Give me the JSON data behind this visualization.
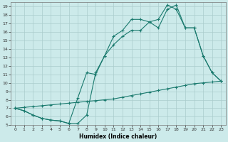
{
  "title": "",
  "xlabel": "Humidex (Indice chaleur)",
  "bg_color": "#cceaea",
  "line_color": "#1a7a6e",
  "grid_color": "#aacccc",
  "xlim": [
    -0.5,
    23.5
  ],
  "ylim": [
    5,
    19.5
  ],
  "xticks": [
    0,
    1,
    2,
    3,
    4,
    5,
    6,
    7,
    8,
    9,
    10,
    11,
    12,
    13,
    14,
    15,
    16,
    17,
    18,
    19,
    20,
    21,
    22,
    23
  ],
  "yticks": [
    5,
    6,
    7,
    8,
    9,
    10,
    11,
    12,
    13,
    14,
    15,
    16,
    17,
    18,
    19
  ],
  "line1_x": [
    0,
    1,
    2,
    3,
    4,
    5,
    6,
    7,
    8,
    9,
    10,
    11,
    12,
    13,
    14,
    15,
    16,
    17,
    18,
    19,
    20,
    21,
    22,
    23
  ],
  "line1_y": [
    7.0,
    6.7,
    6.2,
    5.8,
    5.6,
    5.5,
    5.2,
    5.2,
    6.2,
    11.2,
    13.2,
    14.5,
    15.5,
    16.2,
    16.2,
    17.2,
    17.5,
    19.2,
    18.7,
    16.5,
    16.5,
    13.2,
    11.2,
    10.2
  ],
  "line2_x": [
    0,
    1,
    2,
    3,
    4,
    5,
    6,
    7,
    8,
    9,
    10,
    11,
    12,
    13,
    14,
    15,
    16,
    17,
    18,
    19,
    20,
    21,
    22,
    23
  ],
  "line2_y": [
    7.0,
    6.7,
    6.2,
    5.8,
    5.6,
    5.5,
    5.2,
    8.2,
    11.2,
    11.0,
    13.2,
    15.5,
    16.2,
    17.5,
    17.5,
    17.2,
    16.5,
    18.7,
    19.2,
    16.5,
    16.5,
    13.2,
    11.2,
    10.2
  ],
  "line3_x": [
    0,
    1,
    2,
    3,
    4,
    5,
    6,
    7,
    8,
    9,
    10,
    11,
    12,
    13,
    14,
    15,
    16,
    17,
    18,
    19,
    20,
    21,
    22,
    23
  ],
  "line3_y": [
    7.0,
    7.1,
    7.2,
    7.3,
    7.4,
    7.5,
    7.6,
    7.7,
    7.8,
    7.9,
    8.0,
    8.1,
    8.3,
    8.5,
    8.7,
    8.9,
    9.1,
    9.3,
    9.5,
    9.7,
    9.9,
    10.0,
    10.1,
    10.2
  ]
}
